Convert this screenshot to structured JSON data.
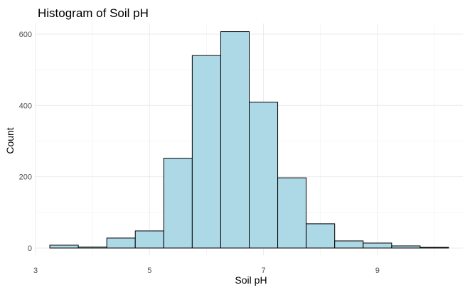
{
  "chart_data": {
    "type": "bar",
    "title": "Histogram of Soil pH",
    "xlabel": "Soil pH",
    "ylabel": "Count",
    "bins": [
      {
        "x0": 3.25,
        "x1": 3.75,
        "count": 8
      },
      {
        "x0": 3.75,
        "x1": 4.25,
        "count": 3
      },
      {
        "x0": 4.25,
        "x1": 4.75,
        "count": 28
      },
      {
        "x0": 4.75,
        "x1": 5.25,
        "count": 48
      },
      {
        "x0": 5.25,
        "x1": 5.75,
        "count": 252
      },
      {
        "x0": 5.75,
        "x1": 6.25,
        "count": 540
      },
      {
        "x0": 6.25,
        "x1": 6.75,
        "count": 607
      },
      {
        "x0": 6.75,
        "x1": 7.25,
        "count": 409
      },
      {
        "x0": 7.25,
        "x1": 7.75,
        "count": 197
      },
      {
        "x0": 7.75,
        "x1": 8.25,
        "count": 68
      },
      {
        "x0": 8.25,
        "x1": 8.75,
        "count": 20
      },
      {
        "x0": 8.75,
        "x1": 9.25,
        "count": 14
      },
      {
        "x0": 9.25,
        "x1": 9.75,
        "count": 6
      },
      {
        "x0": 9.75,
        "x1": 10.25,
        "count": 2
      }
    ],
    "xlim": [
      3.0,
      10.5
    ],
    "ylim": [
      -20,
      630
    ],
    "xticks": [
      3,
      5,
      7,
      9
    ],
    "yticks": [
      0,
      200,
      400,
      600
    ],
    "bar_fill": "#add8e6",
    "bar_outline": "#000000",
    "grid": true,
    "legend": "none"
  }
}
